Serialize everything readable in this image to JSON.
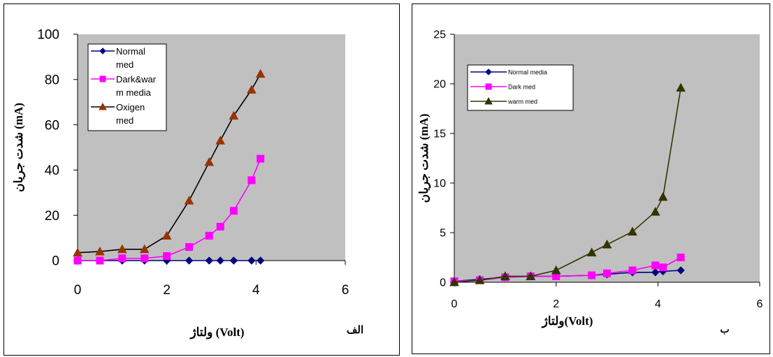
{
  "chart_data": [
    {
      "type": "line",
      "panel_letter": "الف",
      "xlabel": "ولتاژ (Volt)",
      "ylabel": "شدت جریان (mA)",
      "xlim": [
        0,
        6
      ],
      "ylim": [
        0,
        100
      ],
      "xticks": [
        "0",
        "2",
        "4",
        "6"
      ],
      "yticks": [
        "0",
        "20",
        "40",
        "60",
        "80",
        "100"
      ],
      "legend_position": "top-left",
      "plot_background": "#c0c0c0",
      "series": [
        {
          "name": "Normal med",
          "legend_lines": [
            "Normal",
            "med"
          ],
          "color": "#000080",
          "marker": "diamond",
          "x": [
            0,
            0.5,
            1.0,
            1.5,
            2.0,
            2.5,
            2.95,
            3.2,
            3.5,
            3.9,
            4.1
          ],
          "y": [
            0,
            0,
            0,
            0,
            0,
            0,
            0,
            0,
            0,
            0,
            0
          ]
        },
        {
          "name": "Dark&warm media",
          "legend_lines": [
            "Dark&war",
            "m media"
          ],
          "color": "#ff00ff",
          "marker": "square",
          "x": [
            0,
            0.5,
            1.0,
            1.5,
            2.0,
            2.5,
            2.95,
            3.2,
            3.5,
            3.9,
            4.1
          ],
          "y": [
            0,
            0,
            1,
            1,
            2,
            6,
            11,
            15,
            22,
            35.5,
            45
          ]
        },
        {
          "name": "Oxigen med",
          "legend_lines": [
            "Oxigen",
            "med"
          ],
          "color": "#993300",
          "line_color": "#000000",
          "marker": "triangle",
          "x": [
            0,
            0.5,
            1.0,
            1.5,
            2.0,
            2.5,
            2.95,
            3.2,
            3.5,
            3.9,
            4.1
          ],
          "y": [
            3.5,
            4,
            5,
            5,
            11,
            26.5,
            43.5,
            53,
            64,
            75.5,
            82.5
          ]
        }
      ]
    },
    {
      "type": "line",
      "panel_letter": "ب",
      "xlabel": "ولتاژ(Volt)",
      "ylabel": "شدت جریان (mA)",
      "xlim": [
        0,
        6
      ],
      "ylim": [
        0,
        25
      ],
      "xticks": [
        "0",
        "2",
        "4",
        "6"
      ],
      "yticks": [
        "0",
        "5",
        "10",
        "15",
        "20",
        "25"
      ],
      "legend_position": "top-left",
      "plot_background": "#c0c0c0",
      "series": [
        {
          "name": "Normal media",
          "legend_lines": [
            "Normal media"
          ],
          "color": "#000080",
          "marker": "diamond",
          "x": [
            0,
            0.5,
            1.0,
            1.5,
            2.0,
            2.7,
            3.0,
            3.5,
            3.95,
            4.1,
            4.45
          ],
          "y": [
            0.1,
            0.3,
            0.5,
            0.6,
            0.6,
            0.7,
            0.8,
            1.0,
            1.0,
            1.1,
            1.2
          ]
        },
        {
          "name": "Dark med",
          "legend_lines": [
            "Dark med"
          ],
          "color": "#ff00ff",
          "marker": "square",
          "x": [
            0,
            0.5,
            1.0,
            1.5,
            2.0,
            2.7,
            3.0,
            3.5,
            3.95,
            4.1,
            4.45
          ],
          "y": [
            0.1,
            0.2,
            0.5,
            0.6,
            0.6,
            0.7,
            0.9,
            1.2,
            1.7,
            1.5,
            2.5
          ]
        },
        {
          "name": "warm med",
          "legend_lines": [
            "warm med"
          ],
          "color": "#333300",
          "marker": "triangle",
          "x": [
            0,
            0.5,
            1.0,
            1.5,
            2.0,
            2.7,
            3.0,
            3.5,
            3.95,
            4.1,
            4.45
          ],
          "y": [
            0,
            0.2,
            0.6,
            0.6,
            1.2,
            3.0,
            3.8,
            5.1,
            7.1,
            8.6,
            19.6
          ]
        }
      ]
    }
  ]
}
